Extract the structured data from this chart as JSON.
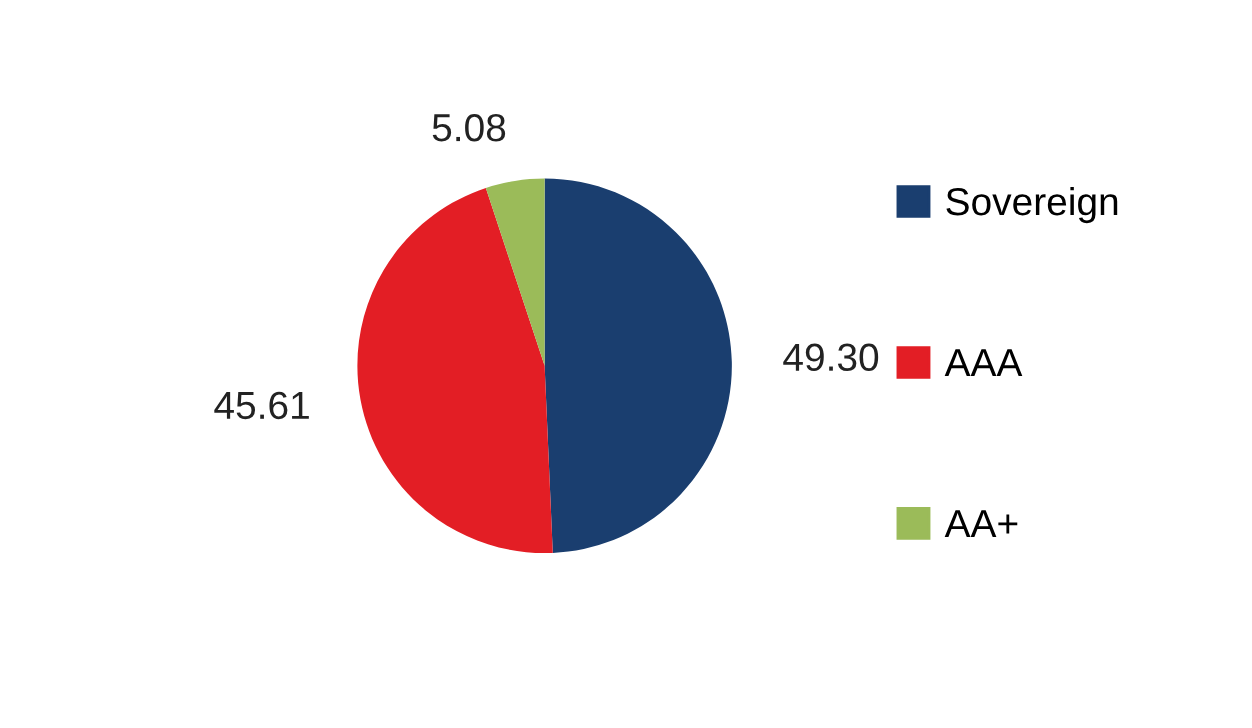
{
  "chart_data": {
    "type": "pie",
    "categories": [
      "Sovereign",
      "AAA",
      "AA+"
    ],
    "values": [
      49.3,
      45.61,
      5.08
    ],
    "value_labels": [
      "49.30",
      "45.61",
      "5.08"
    ],
    "colors": [
      "#1a3e6f",
      "#e31e25",
      "#9bbb59"
    ],
    "legend": "right"
  }
}
